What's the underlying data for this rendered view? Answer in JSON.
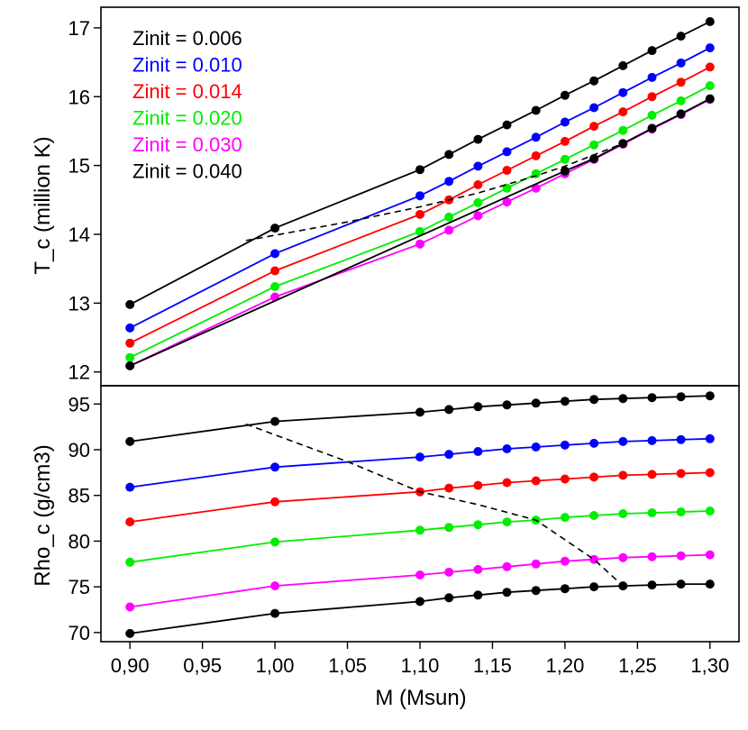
{
  "chart_data": [
    {
      "type": "line",
      "panel": "top",
      "ylabel": "T_c (million K)",
      "xlabel": "",
      "xlim": [
        0.88,
        1.32
      ],
      "ylim": [
        11.8,
        17.3
      ],
      "yticks": [
        "12",
        "13",
        "14",
        "15",
        "16",
        "17"
      ],
      "legend_position": "top-left",
      "series": [
        {
          "name": "Zinit = 0.006",
          "color": "#000000",
          "x": [
            0.9,
            1.0,
            1.1,
            1.12,
            1.14,
            1.16,
            1.18,
            1.2,
            1.22,
            1.24,
            1.26,
            1.28,
            1.3
          ],
          "y": [
            12.98,
            14.09,
            14.94,
            15.16,
            15.38,
            15.59,
            15.8,
            16.02,
            16.23,
            16.45,
            16.67,
            16.88,
            17.09
          ]
        },
        {
          "name": "Zinit = 0.010",
          "color": "#0000ff",
          "x": [
            0.9,
            1.0,
            1.1,
            1.12,
            1.14,
            1.16,
            1.18,
            1.2,
            1.22,
            1.24,
            1.26,
            1.28,
            1.3
          ],
          "y": [
            12.64,
            13.72,
            14.56,
            14.77,
            14.99,
            15.2,
            15.41,
            15.63,
            15.84,
            16.06,
            16.28,
            16.49,
            16.71
          ]
        },
        {
          "name": "Zinit = 0.014",
          "color": "#ff0000",
          "x": [
            0.9,
            1.0,
            1.1,
            1.12,
            1.14,
            1.16,
            1.18,
            1.2,
            1.22,
            1.24,
            1.26,
            1.28,
            1.3
          ],
          "y": [
            12.42,
            13.47,
            14.29,
            14.5,
            14.72,
            14.93,
            15.14,
            15.35,
            15.57,
            15.78,
            16.0,
            16.21,
            16.43
          ]
        },
        {
          "name": "Zinit = 0.020",
          "color": "#00ee00",
          "x": [
            0.9,
            1.0,
            1.1,
            1.12,
            1.14,
            1.16,
            1.18,
            1.2,
            1.22,
            1.24,
            1.26,
            1.28,
            1.3
          ],
          "y": [
            12.21,
            13.24,
            14.04,
            14.25,
            14.46,
            14.67,
            14.88,
            15.09,
            15.3,
            15.51,
            15.73,
            15.94,
            16.16
          ]
        },
        {
          "name": "Zinit = 0.030",
          "color": "#ff00ff",
          "x": [
            0.9,
            1.0,
            1.1,
            1.12,
            1.14,
            1.16,
            1.18,
            1.2,
            1.22,
            1.24,
            1.26,
            1.28,
            1.3
          ],
          "y": [
            12.09,
            13.09,
            13.86,
            14.06,
            14.27,
            14.47,
            14.67,
            14.88,
            15.09,
            15.31,
            15.53,
            15.74,
            15.96
          ]
        },
        {
          "name": "Zinit = 0.040",
          "color": "#000000",
          "x": [
            0.9,
            1.2,
            1.22,
            1.24,
            1.26,
            1.28,
            1.3
          ],
          "y": [
            12.09,
            14.92,
            15.1,
            15.32,
            15.54,
            15.75,
            15.97
          ]
        }
      ],
      "boundary_x": [
        0.98,
        1.05,
        1.1,
        1.14,
        1.18,
        1.2,
        1.24
      ],
      "boundary_y": [
        13.91,
        14.18,
        14.4,
        14.6,
        14.85,
        14.99,
        15.32
      ]
    },
    {
      "type": "line",
      "panel": "bottom",
      "ylabel": "Rho_c (g/cm3)",
      "xlabel": "M (Msun)",
      "xlim": [
        0.88,
        1.32
      ],
      "ylim": [
        69.0,
        97.0
      ],
      "xticks": [
        "0,90",
        "0,95",
        "1,00",
        "1,05",
        "1,10",
        "1,15",
        "1,20",
        "1,25",
        "1,30"
      ],
      "yticks": [
        "70",
        "75",
        "80",
        "85",
        "90",
        "95"
      ],
      "series": [
        {
          "name": "Zinit = 0.006",
          "color": "#000000",
          "x": [
            0.9,
            1.0,
            1.1,
            1.12,
            1.14,
            1.16,
            1.18,
            1.2,
            1.22,
            1.24,
            1.26,
            1.28,
            1.3
          ],
          "y": [
            90.9,
            93.1,
            94.1,
            94.4,
            94.7,
            94.9,
            95.1,
            95.3,
            95.5,
            95.6,
            95.7,
            95.8,
            95.9
          ]
        },
        {
          "name": "Zinit = 0.010",
          "color": "#0000ff",
          "x": [
            0.9,
            1.0,
            1.1,
            1.12,
            1.14,
            1.16,
            1.18,
            1.2,
            1.22,
            1.24,
            1.26,
            1.28,
            1.3
          ],
          "y": [
            85.9,
            88.1,
            89.2,
            89.5,
            89.8,
            90.1,
            90.3,
            90.5,
            90.7,
            90.9,
            91.0,
            91.1,
            91.2
          ]
        },
        {
          "name": "Zinit = 0.014",
          "color": "#ff0000",
          "x": [
            0.9,
            1.0,
            1.1,
            1.12,
            1.14,
            1.16,
            1.18,
            1.2,
            1.22,
            1.24,
            1.26,
            1.28,
            1.3
          ],
          "y": [
            82.1,
            84.3,
            85.4,
            85.8,
            86.1,
            86.4,
            86.6,
            86.8,
            87.0,
            87.2,
            87.3,
            87.4,
            87.5
          ]
        },
        {
          "name": "Zinit = 0.020",
          "color": "#00ee00",
          "x": [
            0.9,
            1.0,
            1.1,
            1.12,
            1.14,
            1.16,
            1.18,
            1.2,
            1.22,
            1.24,
            1.26,
            1.28,
            1.3
          ],
          "y": [
            77.7,
            79.9,
            81.2,
            81.5,
            81.8,
            82.1,
            82.3,
            82.6,
            82.8,
            83.0,
            83.1,
            83.2,
            83.3
          ]
        },
        {
          "name": "Zinit = 0.030",
          "color": "#ff00ff",
          "x": [
            0.9,
            1.0,
            1.1,
            1.12,
            1.14,
            1.16,
            1.18,
            1.2,
            1.22,
            1.24,
            1.26,
            1.28,
            1.3
          ],
          "y": [
            72.8,
            75.1,
            76.3,
            76.6,
            76.9,
            77.2,
            77.5,
            77.8,
            78.0,
            78.2,
            78.3,
            78.4,
            78.5
          ]
        },
        {
          "name": "Zinit = 0.040",
          "color": "#000000",
          "x": [
            0.9,
            1.0,
            1.1,
            1.12,
            1.14,
            1.16,
            1.18,
            1.2,
            1.22,
            1.24,
            1.26,
            1.28,
            1.3
          ],
          "y": [
            69.9,
            72.1,
            73.4,
            73.8,
            74.1,
            74.4,
            74.6,
            74.8,
            75.0,
            75.1,
            75.2,
            75.3,
            75.3
          ]
        }
      ],
      "boundary_x": [
        0.98,
        1.05,
        1.1,
        1.14,
        1.18,
        1.22,
        1.24
      ],
      "boundary_y": [
        92.8,
        88.7,
        85.4,
        84.0,
        82.3,
        78.0,
        75.1
      ]
    }
  ]
}
